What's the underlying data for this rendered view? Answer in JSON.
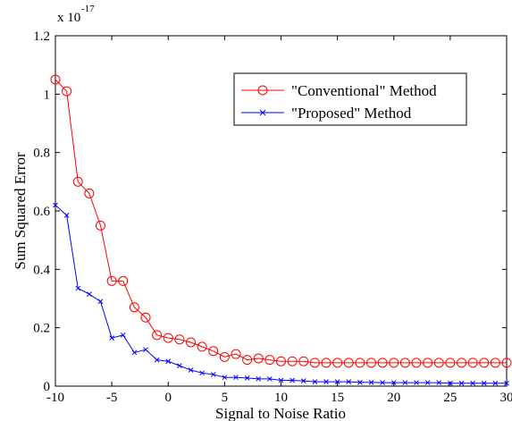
{
  "chart_data": {
    "type": "line",
    "xlabel": "Signal to Noise Ratio",
    "ylabel": "Sum Squared Error",
    "y_multiplier_text": "x 10",
    "y_multiplier_exponent": "-17",
    "xlim": [
      -10,
      30
    ],
    "ylim": [
      0,
      1.2
    ],
    "x_ticks": [
      -10,
      -5,
      0,
      5,
      10,
      15,
      20,
      25,
      30
    ],
    "y_ticks": [
      0,
      0.2,
      0.4,
      0.6,
      0.8,
      1,
      1.2
    ],
    "x_tick_labels": [
      "-10",
      "-5",
      "0",
      "5",
      "10",
      "15",
      "20",
      "25",
      "30"
    ],
    "y_tick_labels": [
      "0",
      "0.2",
      "0.4",
      "0.6",
      "0.8",
      "1",
      "1.2"
    ],
    "grid": false,
    "legend_position": "top-right",
    "x": [
      -10,
      -9,
      -8,
      -7,
      -6,
      -5,
      -4,
      -3,
      -2,
      -1,
      0,
      1,
      2,
      3,
      4,
      5,
      6,
      7,
      8,
      9,
      10,
      11,
      12,
      13,
      14,
      15,
      16,
      17,
      18,
      19,
      20,
      21,
      22,
      23,
      24,
      25,
      26,
      27,
      28,
      29,
      30
    ],
    "series": [
      {
        "name": "\"Conventional\" Method",
        "color": "#ff0000",
        "marker": "circle",
        "values": [
          1.05,
          1.01,
          0.7,
          0.66,
          0.55,
          0.36,
          0.36,
          0.27,
          0.235,
          0.175,
          0.165,
          0.16,
          0.15,
          0.135,
          0.12,
          0.1,
          0.11,
          0.09,
          0.095,
          0.09,
          0.085,
          0.085,
          0.085,
          0.08,
          0.08,
          0.08,
          0.08,
          0.08,
          0.08,
          0.08,
          0.08,
          0.08,
          0.08,
          0.08,
          0.08,
          0.08,
          0.08,
          0.08,
          0.08,
          0.08,
          0.08
        ]
      },
      {
        "name": "\"Proposed\" Method",
        "color": "#0000ff",
        "marker": "x",
        "values": [
          0.62,
          0.585,
          0.335,
          0.315,
          0.29,
          0.165,
          0.175,
          0.115,
          0.125,
          0.09,
          0.085,
          0.07,
          0.055,
          0.045,
          0.04,
          0.03,
          0.03,
          0.028,
          0.025,
          0.025,
          0.02,
          0.02,
          0.018,
          0.015,
          0.015,
          0.015,
          0.015,
          0.013,
          0.013,
          0.012,
          0.012,
          0.012,
          0.012,
          0.012,
          0.012,
          0.01,
          0.01,
          0.01,
          0.01,
          0.01,
          0.01
        ]
      }
    ]
  }
}
